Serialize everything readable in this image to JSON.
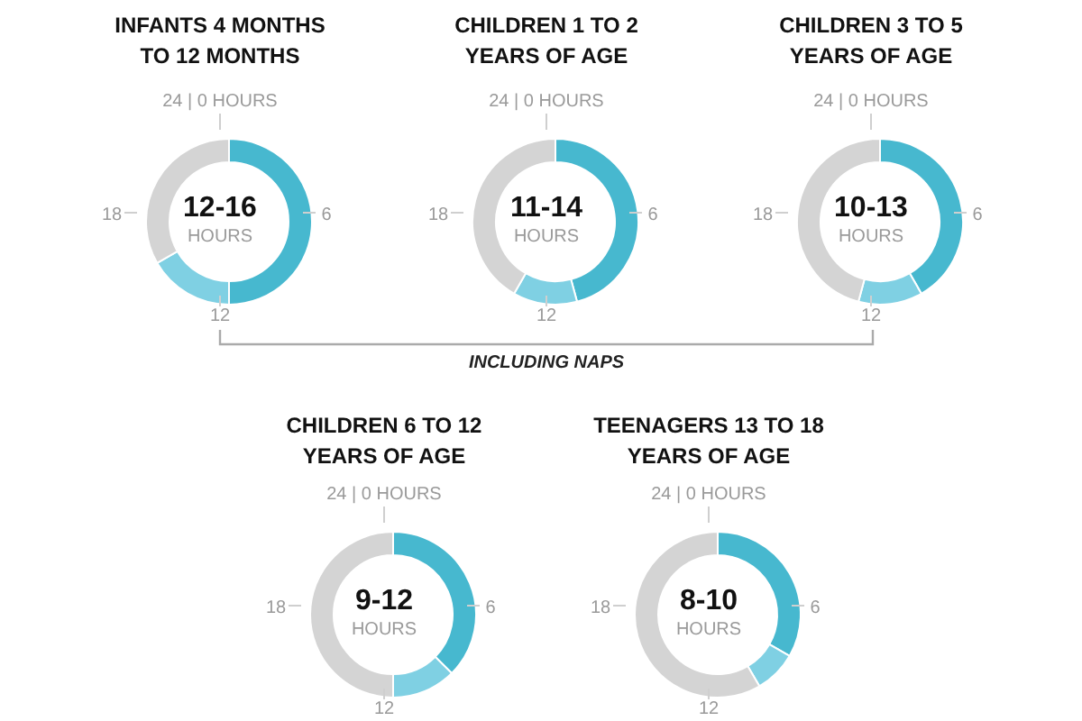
{
  "chart_data": [
    {
      "type": "donut",
      "title": "INFANTS 4 MONTHS TO 12 MONTHS",
      "categories": [
        null,
        null,
        null
      ],
      "values": [
        50,
        16.7,
        33.3
      ],
      "colors": [
        "#47b8cf",
        "#7fd0e3",
        "#d4d4d4"
      ],
      "annotations": [
        "12-16",
        "HOURS",
        "24 | 0 HOURS",
        "6",
        "12",
        "18",
        "INCLUDING NAPS"
      ]
    },
    {
      "type": "donut",
      "title": "CHILDREN 1 TO 2 YEARS OF AGE",
      "categories": [
        null,
        null,
        null
      ],
      "values": [
        45.8,
        12.5,
        41.7
      ],
      "colors": [
        "#47b8cf",
        "#7fd0e3",
        "#d4d4d4"
      ],
      "annotations": [
        "11-14",
        "HOURS",
        "24 | 0 HOURS",
        "6",
        "12",
        "18"
      ]
    },
    {
      "type": "donut",
      "title": "CHILDREN 3 TO 5 YEARS OF AGE",
      "categories": [
        null,
        null,
        null
      ],
      "values": [
        41.7,
        12.5,
        45.8
      ],
      "colors": [
        "#47b8cf",
        "#7fd0e3",
        "#d4d4d4"
      ],
      "annotations": [
        "10-13",
        "HOURS",
        "24 | 0 HOURS",
        "6",
        "12",
        "18"
      ]
    },
    {
      "type": "donut",
      "title": "CHILDREN 6 TO 12 YEARS OF AGE",
      "categories": [
        null,
        null,
        null
      ],
      "values": [
        37.5,
        12.5,
        50
      ],
      "colors": [
        "#47b8cf",
        "#7fd0e3",
        "#d4d4d4"
      ],
      "annotations": [
        "9-12",
        "HOURS",
        "24 | 0 HOURS",
        "6",
        "12",
        "18"
      ]
    },
    {
      "type": "donut",
      "title": "TEENAGERS 13 TO 18 YEARS OF AGE",
      "categories": [
        null,
        null,
        null
      ],
      "values": [
        33.3,
        8.3,
        58.4
      ],
      "colors": [
        "#47b8cf",
        "#7fd0e3",
        "#d4d4d4"
      ],
      "annotations": [
        "8-10",
        "HOURS",
        "24 | 0 HOURS",
        "6",
        "12",
        "18"
      ]
    }
  ]
}
